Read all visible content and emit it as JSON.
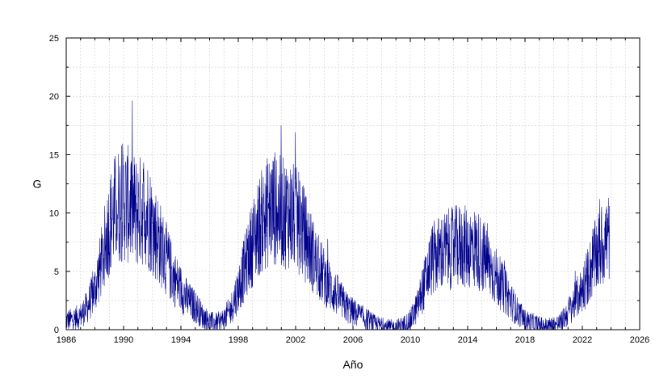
{
  "chart_data": {
    "type": "line",
    "xlabel": "Año",
    "ylabel": "G",
    "xlim": [
      1986,
      2026
    ],
    "ylim": [
      0,
      25
    ],
    "x_ticks": [
      1986,
      1990,
      1994,
      1998,
      2002,
      2006,
      2010,
      2014,
      2018,
      2022,
      2026
    ],
    "y_ticks": [
      0,
      5,
      10,
      15,
      20,
      25
    ],
    "x_tick_labels": [
      "1986",
      "1990",
      "1994",
      "1998",
      "2002",
      "2006",
      "2010",
      "2014",
      "2018",
      "2022",
      "2026"
    ],
    "y_tick_labels": [
      "0",
      "5",
      "10",
      "15",
      "20",
      "25"
    ],
    "grid": true,
    "series_color": "#00008b",
    "series": [
      {
        "x": [
          1986.0,
          1986.5,
          1987.0,
          1987.5,
          1988.0,
          1988.5,
          1989.0,
          1989.5,
          1990.0,
          1990.5,
          1991.0,
          1991.5,
          1992.0,
          1992.5,
          1993.0,
          1993.5,
          1994.0,
          1994.5,
          1995.0,
          1995.5,
          1996.0,
          1996.5,
          1997.0,
          1997.5,
          1998.0,
          1998.5,
          1999.0,
          1999.5,
          2000.0,
          2000.5,
          2001.0,
          2001.5,
          2002.0,
          2002.5,
          2003.0,
          2003.5,
          2004.0,
          2004.5,
          2005.0,
          2005.5,
          2006.0,
          2006.5,
          2007.0,
          2007.5,
          2008.0,
          2008.5,
          2009.0,
          2009.5,
          2010.0,
          2010.5,
          2011.0,
          2011.5,
          2012.0,
          2012.5,
          2013.0,
          2013.5,
          2014.0,
          2014.5,
          2015.0,
          2015.5,
          2016.0,
          2016.5,
          2017.0,
          2017.5,
          2018.0,
          2018.5,
          2019.0,
          2019.5,
          2020.0,
          2020.5,
          2021.0,
          2021.5,
          2022.0,
          2022.5,
          2023.0,
          2023.5,
          2023.9
        ],
        "values": [
          0.8,
          0.9,
          1.2,
          2.0,
          3.5,
          6.0,
          9.0,
          10.5,
          11.0,
          10.5,
          10.0,
          10.5,
          9.0,
          7.5,
          6.0,
          4.5,
          3.5,
          2.5,
          2.0,
          1.2,
          0.7,
          0.6,
          0.9,
          1.8,
          3.5,
          5.5,
          7.5,
          9.0,
          10.0,
          10.5,
          10.0,
          10.0,
          9.5,
          8.5,
          7.0,
          5.5,
          4.5,
          3.5,
          2.8,
          2.0,
          1.5,
          1.2,
          0.8,
          0.5,
          0.3,
          0.2,
          0.2,
          0.4,
          0.8,
          2.0,
          4.0,
          6.0,
          6.5,
          6.8,
          7.0,
          7.2,
          7.0,
          7.0,
          6.5,
          5.5,
          4.5,
          3.5,
          2.5,
          1.5,
          0.8,
          0.6,
          0.4,
          0.3,
          0.4,
          0.6,
          1.5,
          2.5,
          3.5,
          5.0,
          6.5,
          7.5,
          8.0
        ]
      }
    ]
  }
}
